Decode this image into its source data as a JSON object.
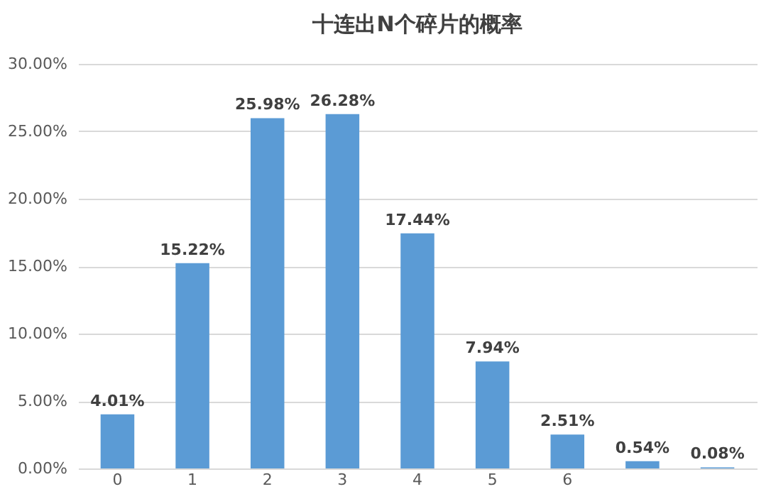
{
  "chart_data": {
    "type": "bar",
    "title": "十连出N个碎片的概率",
    "categories": [
      "0",
      "1",
      "2",
      "3",
      "4",
      "5",
      "6",
      null,
      null
    ],
    "values": [
      4.01,
      15.22,
      25.98,
      26.28,
      17.44,
      7.94,
      2.51,
      0.54,
      0.08
    ],
    "value_labels": [
      "4.01%",
      "15.22%",
      "25.98%",
      "26.28%",
      "17.44%",
      "7.94%",
      "2.51%",
      "0.54%",
      "0.08%"
    ],
    "color": "#5b9bd5",
    "ylim": [
      0,
      30
    ],
    "yticks": [
      {
        "value": 0,
        "label": "0.00%"
      },
      {
        "value": 5,
        "label": "5.00%"
      },
      {
        "value": 10,
        "label": "10.00%"
      },
      {
        "value": 15,
        "label": "15.00%"
      },
      {
        "value": 20,
        "label": "20.00%"
      },
      {
        "value": 25,
        "label": "25.00%"
      },
      {
        "value": 30,
        "label": "30.00%"
      }
    ],
    "grid": "y"
  }
}
